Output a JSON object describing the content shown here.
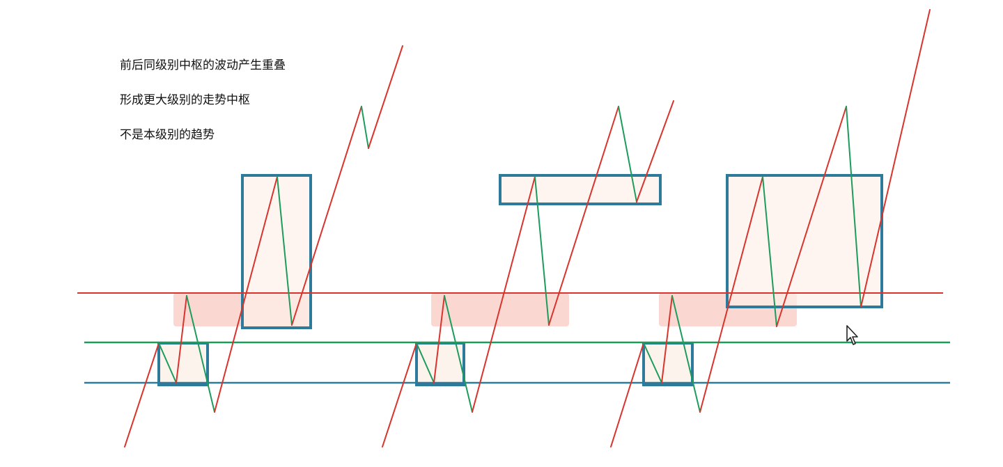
{
  "captions": [
    "前后同级别中枢的波动产生重叠",
    "形成更大级别的走势中枢",
    "不是本级别的趋势"
  ],
  "colors": {
    "up_stroke": "#d9332b",
    "down_stroke": "#1c9c5c",
    "box_stroke": "#2e7a9a",
    "box_fill": "#fdf1ea",
    "overlap_fill": "#f9c9c2",
    "level_high": "#d9332b",
    "level_mid": "#1c9c5c",
    "level_low": "#2e7a9a",
    "text": "#111111"
  },
  "icons": {
    "pointer": "mouse-pointer-icon"
  }
}
